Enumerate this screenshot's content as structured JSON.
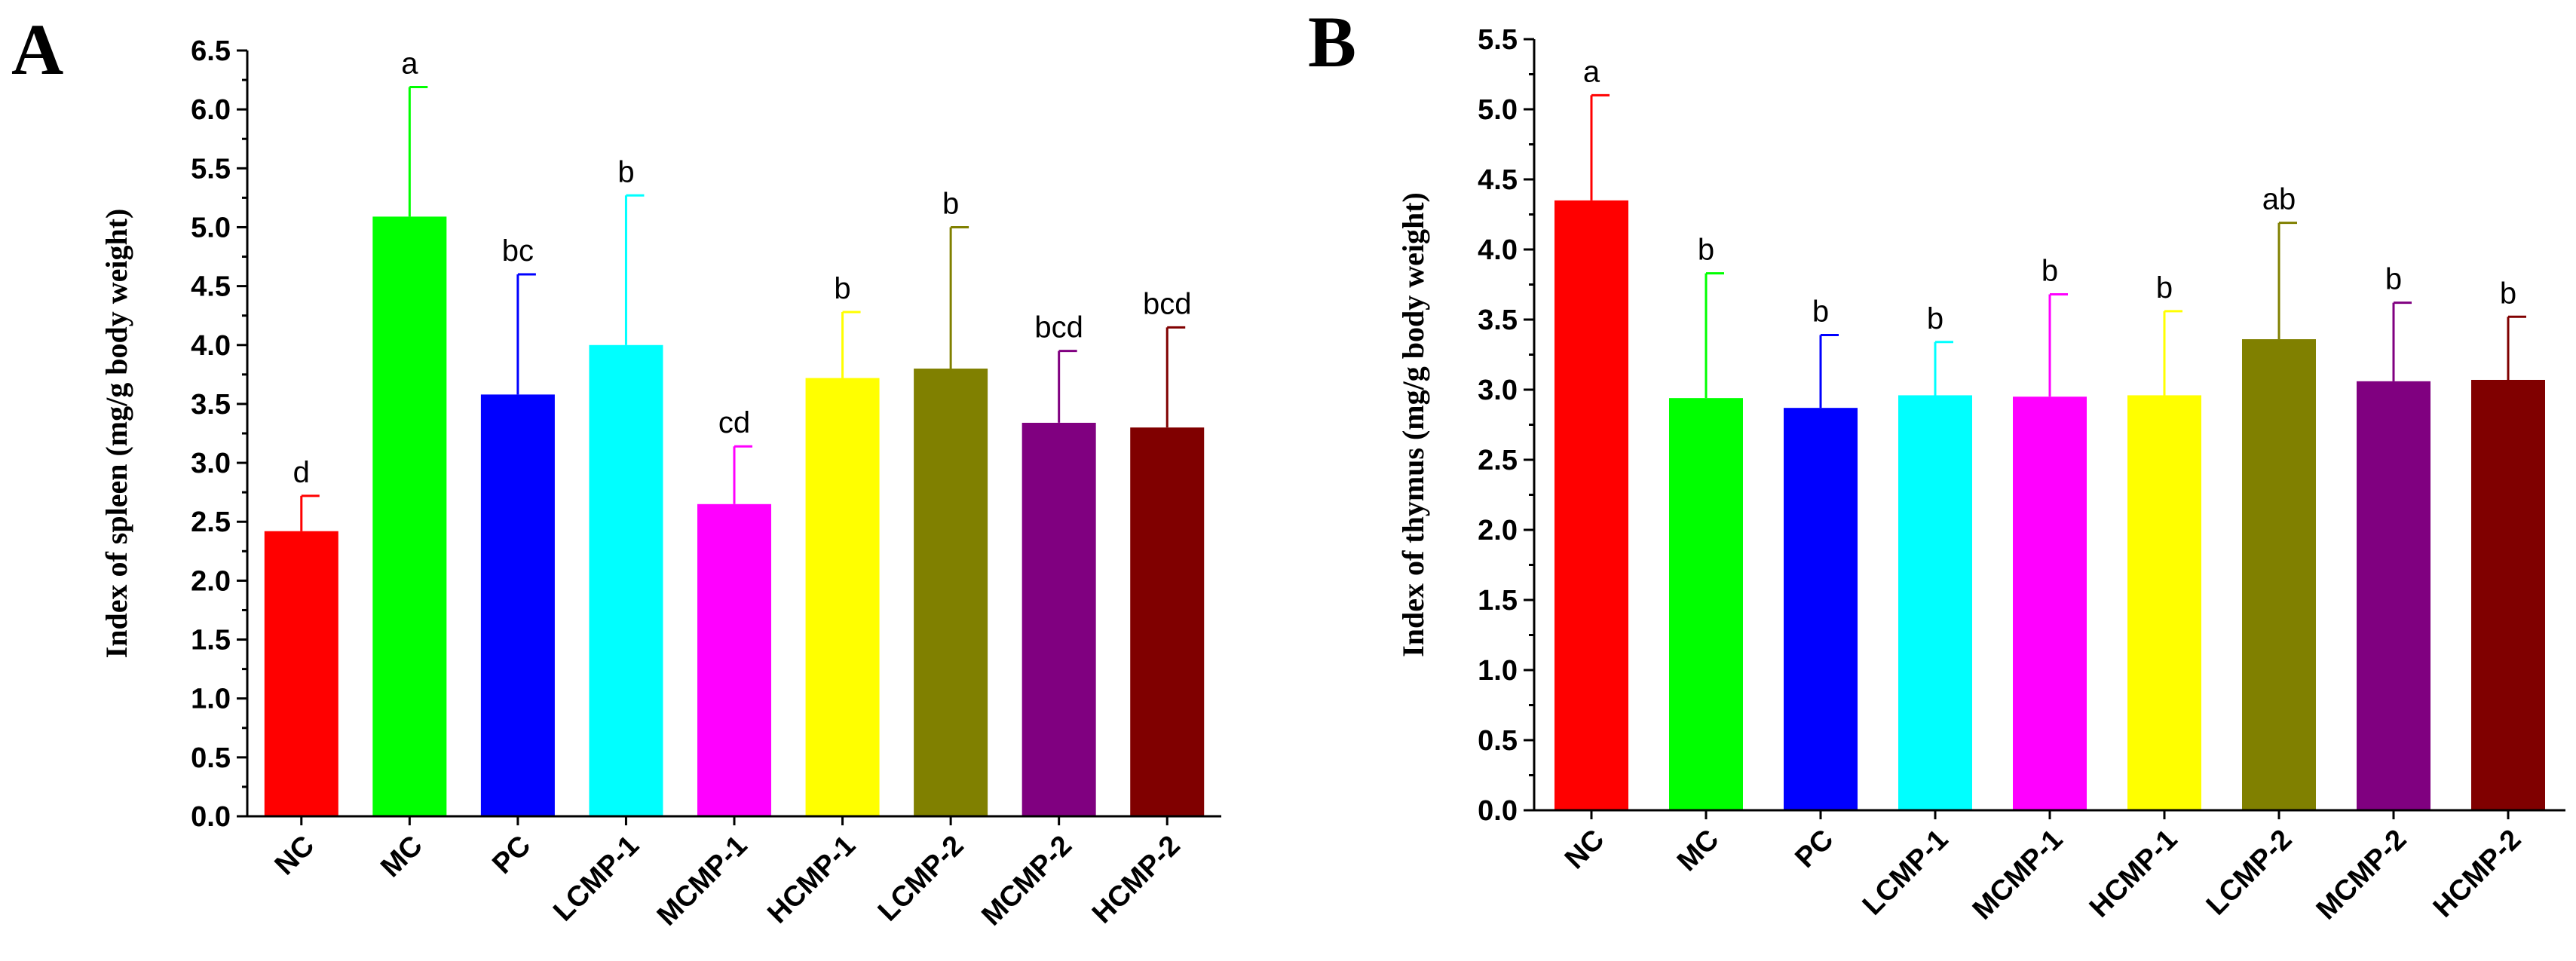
{
  "chart_data": [
    {
      "type": "bar",
      "panel_label": "A",
      "title": "",
      "xlabel": "",
      "ylabel": "Index of spleen (mg/g body weight)",
      "ylim": [
        0,
        6.5
      ],
      "yticks": [
        "0.0",
        "0.5",
        "1.0",
        "1.5",
        "2.0",
        "2.5",
        "3.0",
        "3.5",
        "4.0",
        "4.5",
        "5.0",
        "5.5",
        "6.0",
        "6.5"
      ],
      "categories": [
        "NC",
        "MC",
        "PC",
        "LCMP-1",
        "MCMP-1",
        "HCMP-1",
        "LCMP-2",
        "MCMP-2",
        "HCMP-2"
      ],
      "values": [
        2.42,
        5.09,
        3.58,
        4.0,
        2.65,
        3.72,
        3.8,
        3.34,
        3.3
      ],
      "errors": [
        0.3,
        1.1,
        1.02,
        1.27,
        0.49,
        0.56,
        1.2,
        0.61,
        0.85
      ],
      "significance": [
        "d",
        "a",
        "bc",
        "b",
        "cd",
        "b",
        "b",
        "bcd",
        "bcd"
      ],
      "colors": [
        "#ff0000",
        "#00ff00",
        "#0000ff",
        "#00ffff",
        "#ff00ff",
        "#ffff00",
        "#808000",
        "#800080",
        "#800000"
      ]
    },
    {
      "type": "bar",
      "panel_label": "B",
      "title": "",
      "xlabel": "",
      "ylabel": "Index of thymus (mg/g body weight)",
      "ylim": [
        0,
        5.5
      ],
      "yticks": [
        "0.0",
        "0.5",
        "1.0",
        "1.5",
        "2.0",
        "2.5",
        "3.0",
        "3.5",
        "4.0",
        "4.5",
        "5.0",
        "5.5"
      ],
      "categories": [
        "NC",
        "MC",
        "PC",
        "LCMP-1",
        "MCMP-1",
        "HCMP-1",
        "LCMP-2",
        "MCMP-2",
        "HCMP-2"
      ],
      "values": [
        4.35,
        2.94,
        2.87,
        2.96,
        2.95,
        2.96,
        3.36,
        3.06,
        3.07
      ],
      "errors": [
        0.75,
        0.89,
        0.52,
        0.38,
        0.73,
        0.6,
        0.83,
        0.56,
        0.45
      ],
      "significance": [
        "a",
        "b",
        "b",
        "b",
        "b",
        "b",
        "ab",
        "b",
        "b"
      ],
      "colors": [
        "#ff0000",
        "#00ff00",
        "#0000ff",
        "#00ffff",
        "#ff00ff",
        "#ffff00",
        "#808000",
        "#800080",
        "#800000"
      ]
    }
  ]
}
